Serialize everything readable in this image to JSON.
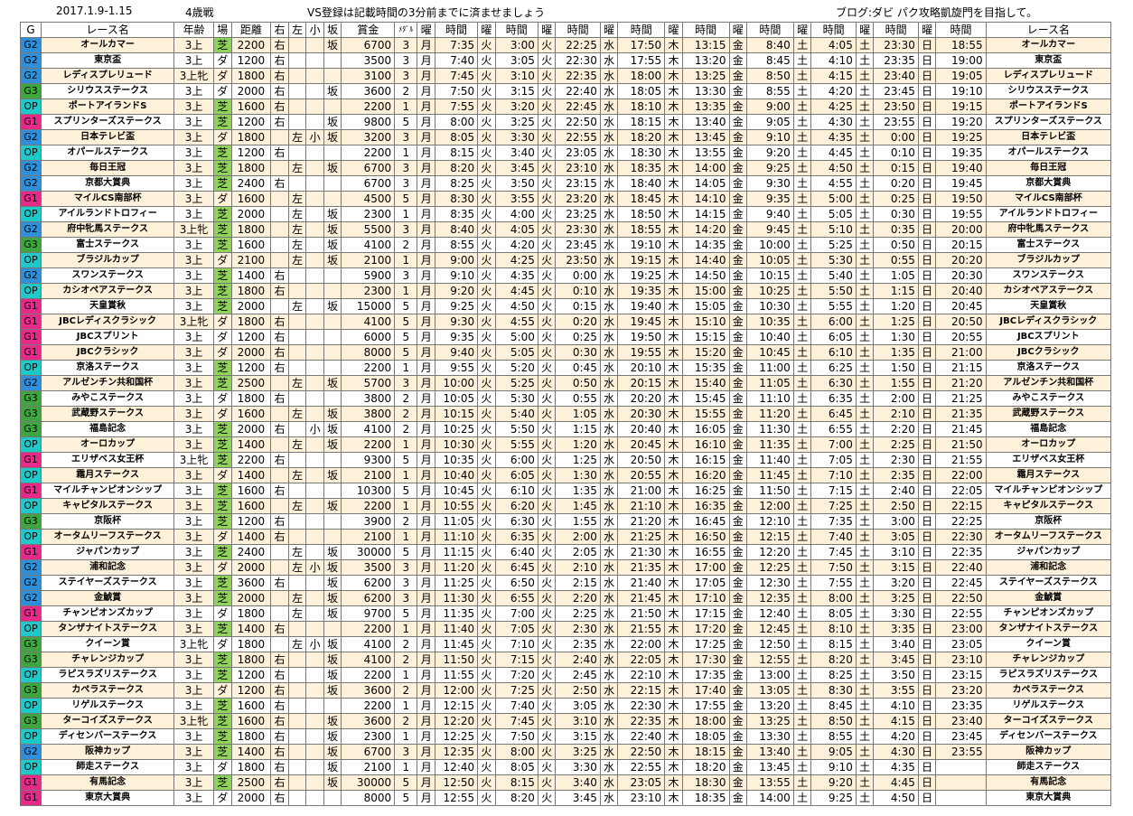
{
  "header": {
    "date_range": "2017.1.9-1.15",
    "age_label": "4歳戦",
    "notice": "VS登録は記載時間の3分前までに済ませましょう",
    "blog": "ブログ:ダビ パク攻略凱旋門を目指して。"
  },
  "columns": [
    "G",
    "レース名",
    "年齢",
    "場",
    "距離",
    "右",
    "左",
    "小",
    "坂",
    "賞金",
    "ﾒﾀﾞﾙ",
    "曜",
    "時間",
    "曜",
    "時間",
    "曜",
    "時間",
    "曜",
    "時間",
    "曜",
    "時間",
    "曜",
    "時間",
    "曜",
    "時間",
    "曜",
    "時間",
    "曜",
    "時間",
    "レース名"
  ],
  "days": [
    "月",
    "火",
    "火",
    "水",
    "木",
    "金",
    "土",
    "土",
    "日",
    "日"
  ],
  "races": [
    [
      "G2",
      "オールカマー",
      "3上",
      "芝",
      "2200",
      "右",
      "",
      "",
      "坂",
      "6700",
      "3",
      "7:35",
      "3:00",
      "22:25",
      "17:50",
      "13:15",
      "8:40",
      "4:05",
      "23:30",
      "18:55"
    ],
    [
      "G2",
      "東京盃",
      "3上",
      "ダ",
      "1200",
      "右",
      "",
      "",
      "",
      "3500",
      "3",
      "7:40",
      "3:05",
      "22:30",
      "17:55",
      "13:20",
      "8:45",
      "4:10",
      "23:35",
      "19:00"
    ],
    [
      "G2",
      "レディスプレリュード",
      "3上牝",
      "ダ",
      "1800",
      "右",
      "",
      "",
      "",
      "3100",
      "3",
      "7:45",
      "3:10",
      "22:35",
      "18:00",
      "13:25",
      "8:50",
      "4:15",
      "23:40",
      "19:05"
    ],
    [
      "G3",
      "シリウスステークス",
      "3上",
      "ダ",
      "2000",
      "右",
      "",
      "",
      "坂",
      "3600",
      "2",
      "7:50",
      "3:15",
      "22:40",
      "18:05",
      "13:30",
      "8:55",
      "4:20",
      "23:45",
      "19:10"
    ],
    [
      "OP",
      "ポートアイランドS",
      "3上",
      "芝",
      "1600",
      "右",
      "",
      "",
      "",
      "2200",
      "1",
      "7:55",
      "3:20",
      "22:45",
      "18:10",
      "13:35",
      "9:00",
      "4:25",
      "23:50",
      "19:15"
    ],
    [
      "G1",
      "スプリンターズステークス",
      "3上",
      "芝",
      "1200",
      "右",
      "",
      "",
      "坂",
      "9800",
      "5",
      "8:00",
      "3:25",
      "22:50",
      "18:15",
      "13:40",
      "9:05",
      "4:30",
      "23:55",
      "19:20"
    ],
    [
      "G2",
      "日本テレビ盃",
      "3上",
      "ダ",
      "1800",
      "",
      "左",
      "小",
      "坂",
      "3200",
      "3",
      "8:05",
      "3:30",
      "22:55",
      "18:20",
      "13:45",
      "9:10",
      "4:35",
      "0:00",
      "19:25"
    ],
    [
      "OP",
      "オパールステークス",
      "3上",
      "芝",
      "1200",
      "右",
      "",
      "",
      "",
      "2200",
      "1",
      "8:15",
      "3:40",
      "23:05",
      "18:30",
      "13:55",
      "9:20",
      "4:45",
      "0:10",
      "19:35"
    ],
    [
      "G2",
      "毎日王冠",
      "3上",
      "芝",
      "1800",
      "",
      "左",
      "",
      "坂",
      "6700",
      "3",
      "8:20",
      "3:45",
      "23:10",
      "18:35",
      "14:00",
      "9:25",
      "4:50",
      "0:15",
      "19:40"
    ],
    [
      "G2",
      "京都大賞典",
      "3上",
      "芝",
      "2400",
      "右",
      "",
      "",
      "",
      "6700",
      "3",
      "8:25",
      "3:50",
      "23:15",
      "18:40",
      "14:05",
      "9:30",
      "4:55",
      "0:20",
      "19:45"
    ],
    [
      "G1",
      "マイルCS南部杯",
      "3上",
      "ダ",
      "1600",
      "",
      "左",
      "",
      "",
      "4500",
      "5",
      "8:30",
      "3:55",
      "23:20",
      "18:45",
      "14:10",
      "9:35",
      "5:00",
      "0:25",
      "19:50"
    ],
    [
      "OP",
      "アイルランドトロフィー",
      "3上",
      "芝",
      "2000",
      "",
      "左",
      "",
      "坂",
      "2300",
      "1",
      "8:35",
      "4:00",
      "23:25",
      "18:50",
      "14:15",
      "9:40",
      "5:05",
      "0:30",
      "19:55"
    ],
    [
      "G2",
      "府中牝馬ステークス",
      "3上牝",
      "芝",
      "1800",
      "",
      "左",
      "",
      "坂",
      "5500",
      "3",
      "8:40",
      "4:05",
      "23:30",
      "18:55",
      "14:20",
      "9:45",
      "5:10",
      "0:35",
      "20:00"
    ],
    [
      "G3",
      "富士ステークス",
      "3上",
      "芝",
      "1600",
      "",
      "左",
      "",
      "坂",
      "4100",
      "2",
      "8:55",
      "4:20",
      "23:45",
      "19:10",
      "14:35",
      "10:00",
      "5:25",
      "0:50",
      "20:15"
    ],
    [
      "OP",
      "ブラジルカップ",
      "3上",
      "ダ",
      "2100",
      "",
      "左",
      "",
      "坂",
      "2100",
      "1",
      "9:00",
      "4:25",
      "23:50",
      "19:15",
      "14:40",
      "10:05",
      "5:30",
      "0:55",
      "20:20"
    ],
    [
      "G2",
      "スワンステークス",
      "3上",
      "芝",
      "1400",
      "右",
      "",
      "",
      "",
      "5900",
      "3",
      "9:10",
      "4:35",
      "0:00",
      "19:25",
      "14:50",
      "10:15",
      "5:40",
      "1:05",
      "20:30"
    ],
    [
      "OP",
      "カシオペアステークス",
      "3上",
      "芝",
      "1800",
      "右",
      "",
      "",
      "",
      "2300",
      "1",
      "9:20",
      "4:45",
      "0:10",
      "19:35",
      "15:00",
      "10:25",
      "5:50",
      "1:15",
      "20:40"
    ],
    [
      "G1",
      "天皇賞秋",
      "3上",
      "芝",
      "2000",
      "",
      "左",
      "",
      "坂",
      "15000",
      "5",
      "9:25",
      "4:50",
      "0:15",
      "19:40",
      "15:05",
      "10:30",
      "5:55",
      "1:20",
      "20:45"
    ],
    [
      "G1",
      "JBCレディスクラシック",
      "3上牝",
      "ダ",
      "1800",
      "右",
      "",
      "",
      "",
      "4100",
      "5",
      "9:30",
      "4:55",
      "0:20",
      "19:45",
      "15:10",
      "10:35",
      "6:00",
      "1:25",
      "20:50"
    ],
    [
      "G1",
      "JBCスプリント",
      "3上",
      "ダ",
      "1200",
      "右",
      "",
      "",
      "",
      "6000",
      "5",
      "9:35",
      "5:00",
      "0:25",
      "19:50",
      "15:15",
      "10:40",
      "6:05",
      "1:30",
      "20:55"
    ],
    [
      "G1",
      "JBCクラシック",
      "3上",
      "ダ",
      "2000",
      "右",
      "",
      "",
      "",
      "8000",
      "5",
      "9:40",
      "5:05",
      "0:30",
      "19:55",
      "15:20",
      "10:45",
      "6:10",
      "1:35",
      "21:00"
    ],
    [
      "OP",
      "京洛ステークス",
      "3上",
      "芝",
      "1200",
      "右",
      "",
      "",
      "",
      "2200",
      "1",
      "9:55",
      "5:20",
      "0:45",
      "20:10",
      "15:35",
      "11:00",
      "6:25",
      "1:50",
      "21:15"
    ],
    [
      "G2",
      "アルゼンチン共和国杯",
      "3上",
      "芝",
      "2500",
      "",
      "左",
      "",
      "坂",
      "5700",
      "3",
      "10:00",
      "5:25",
      "0:50",
      "20:15",
      "15:40",
      "11:05",
      "6:30",
      "1:55",
      "21:20"
    ],
    [
      "G3",
      "みやこステークス",
      "3上",
      "ダ",
      "1800",
      "右",
      "",
      "",
      "",
      "3800",
      "2",
      "10:05",
      "5:30",
      "0:55",
      "20:20",
      "15:45",
      "11:10",
      "6:35",
      "2:00",
      "21:25"
    ],
    [
      "G3",
      "武蔵野ステークス",
      "3上",
      "ダ",
      "1600",
      "",
      "左",
      "",
      "坂",
      "3800",
      "2",
      "10:15",
      "5:40",
      "1:05",
      "20:30",
      "15:55",
      "11:20",
      "6:45",
      "2:10",
      "21:35"
    ],
    [
      "G3",
      "福島記念",
      "3上",
      "芝",
      "2000",
      "右",
      "",
      "小",
      "坂",
      "4100",
      "2",
      "10:25",
      "5:50",
      "1:15",
      "20:40",
      "16:05",
      "11:30",
      "6:55",
      "2:20",
      "21:45"
    ],
    [
      "OP",
      "オーロカップ",
      "3上",
      "芝",
      "1400",
      "",
      "左",
      "",
      "坂",
      "2200",
      "1",
      "10:30",
      "5:55",
      "1:20",
      "20:45",
      "16:10",
      "11:35",
      "7:00",
      "2:25",
      "21:50"
    ],
    [
      "G1",
      "エリザベス女王杯",
      "3上牝",
      "芝",
      "2200",
      "右",
      "",
      "",
      "",
      "9300",
      "5",
      "10:35",
      "6:00",
      "1:25",
      "20:50",
      "16:15",
      "11:40",
      "7:05",
      "2:30",
      "21:55"
    ],
    [
      "OP",
      "霜月ステークス",
      "3上",
      "ダ",
      "1400",
      "",
      "左",
      "",
      "坂",
      "2100",
      "1",
      "10:40",
      "6:05",
      "1:30",
      "20:55",
      "16:20",
      "11:45",
      "7:10",
      "2:35",
      "22:00"
    ],
    [
      "G1",
      "マイルチャンピオンシップ",
      "3上",
      "芝",
      "1600",
      "右",
      "",
      "",
      "",
      "10300",
      "5",
      "10:45",
      "6:10",
      "1:35",
      "21:00",
      "16:25",
      "11:50",
      "7:15",
      "2:40",
      "22:05"
    ],
    [
      "OP",
      "キャピタルステークス",
      "3上",
      "芝",
      "1600",
      "",
      "左",
      "",
      "坂",
      "2200",
      "1",
      "10:55",
      "6:20",
      "1:45",
      "21:10",
      "16:35",
      "12:00",
      "7:25",
      "2:50",
      "22:15"
    ],
    [
      "G3",
      "京阪杯",
      "3上",
      "芝",
      "1200",
      "右",
      "",
      "",
      "",
      "3900",
      "2",
      "11:05",
      "6:30",
      "1:55",
      "21:20",
      "16:45",
      "12:10",
      "7:35",
      "3:00",
      "22:25"
    ],
    [
      "OP",
      "オータムリーフステークス",
      "3上",
      "ダ",
      "1400",
      "右",
      "",
      "",
      "",
      "2100",
      "1",
      "11:10",
      "6:35",
      "2:00",
      "21:25",
      "16:50",
      "12:15",
      "7:40",
      "3:05",
      "22:30"
    ],
    [
      "G1",
      "ジャパンカップ",
      "3上",
      "芝",
      "2400",
      "",
      "左",
      "",
      "坂",
      "30000",
      "5",
      "11:15",
      "6:40",
      "2:05",
      "21:30",
      "16:55",
      "12:20",
      "7:45",
      "3:10",
      "22:35"
    ],
    [
      "G2",
      "浦和記念",
      "3上",
      "ダ",
      "2000",
      "",
      "左",
      "小",
      "坂",
      "3500",
      "3",
      "11:20",
      "6:45",
      "2:10",
      "21:35",
      "17:00",
      "12:25",
      "7:50",
      "3:15",
      "22:40"
    ],
    [
      "G2",
      "ステイヤーズステークス",
      "3上",
      "芝",
      "3600",
      "右",
      "",
      "",
      "坂",
      "6200",
      "3",
      "11:25",
      "6:50",
      "2:15",
      "21:40",
      "17:05",
      "12:30",
      "7:55",
      "3:20",
      "22:45"
    ],
    [
      "G2",
      "金鯱賞",
      "3上",
      "芝",
      "2000",
      "",
      "左",
      "",
      "坂",
      "6200",
      "3",
      "11:30",
      "6:55",
      "2:20",
      "21:45",
      "17:10",
      "12:35",
      "8:00",
      "3:25",
      "22:50"
    ],
    [
      "G1",
      "チャンピオンズカップ",
      "3上",
      "ダ",
      "1800",
      "",
      "左",
      "",
      "坂",
      "9700",
      "5",
      "11:35",
      "7:00",
      "2:25",
      "21:50",
      "17:15",
      "12:40",
      "8:05",
      "3:30",
      "22:55"
    ],
    [
      "OP",
      "タンザナイトステークス",
      "3上",
      "芝",
      "1400",
      "右",
      "",
      "",
      "",
      "2200",
      "1",
      "11:40",
      "7:05",
      "2:30",
      "21:55",
      "17:20",
      "12:45",
      "8:10",
      "3:35",
      "23:00"
    ],
    [
      "G3",
      "クイーン賞",
      "3上牝",
      "ダ",
      "1800",
      "",
      "左",
      "小",
      "坂",
      "4100",
      "2",
      "11:45",
      "7:10",
      "2:35",
      "22:00",
      "17:25",
      "12:50",
      "8:15",
      "3:40",
      "23:05"
    ],
    [
      "G3",
      "チャレンジカップ",
      "3上",
      "芝",
      "1800",
      "右",
      "",
      "",
      "坂",
      "4100",
      "2",
      "11:50",
      "7:15",
      "2:40",
      "22:05",
      "17:30",
      "12:55",
      "8:20",
      "3:45",
      "23:10"
    ],
    [
      "OP",
      "ラピスラズリステークス",
      "3上",
      "芝",
      "1200",
      "右",
      "",
      "",
      "坂",
      "2200",
      "1",
      "11:55",
      "7:20",
      "2:45",
      "22:10",
      "17:35",
      "13:00",
      "8:25",
      "3:50",
      "23:15"
    ],
    [
      "G3",
      "カペラステークス",
      "3上",
      "ダ",
      "1200",
      "右",
      "",
      "",
      "坂",
      "3600",
      "2",
      "12:00",
      "7:25",
      "2:50",
      "22:15",
      "17:40",
      "13:05",
      "8:30",
      "3:55",
      "23:20"
    ],
    [
      "OP",
      "リゲルステークス",
      "3上",
      "芝",
      "1600",
      "右",
      "",
      "",
      "",
      "2200",
      "1",
      "12:15",
      "7:40",
      "3:05",
      "22:30",
      "17:55",
      "13:20",
      "8:45",
      "4:10",
      "23:35"
    ],
    [
      "G3",
      "ターコイズステークス",
      "3上牝",
      "芝",
      "1600",
      "右",
      "",
      "",
      "坂",
      "3600",
      "2",
      "12:20",
      "7:45",
      "3:10",
      "22:35",
      "18:00",
      "13:25",
      "8:50",
      "4:15",
      "23:40"
    ],
    [
      "OP",
      "ディセンバーステークス",
      "3上",
      "芝",
      "1800",
      "右",
      "",
      "",
      "坂",
      "2300",
      "1",
      "12:25",
      "7:50",
      "3:15",
      "22:40",
      "18:05",
      "13:30",
      "8:55",
      "4:20",
      "23:45"
    ],
    [
      "G2",
      "阪神カップ",
      "3上",
      "芝",
      "1400",
      "右",
      "",
      "",
      "坂",
      "6700",
      "3",
      "12:35",
      "8:00",
      "3:25",
      "22:50",
      "18:15",
      "13:40",
      "9:05",
      "4:30",
      "23:55"
    ],
    [
      "OP",
      "師走ステークス",
      "3上",
      "ダ",
      "1800",
      "右",
      "",
      "",
      "坂",
      "2100",
      "1",
      "12:40",
      "8:05",
      "3:30",
      "22:55",
      "18:20",
      "13:45",
      "9:10",
      "4:35",
      ""
    ],
    [
      "G1",
      "有馬記念",
      "3上",
      "芝",
      "2500",
      "右",
      "",
      "",
      "坂",
      "30000",
      "5",
      "12:50",
      "8:15",
      "3:40",
      "23:05",
      "18:30",
      "13:55",
      "9:20",
      "4:45",
      ""
    ],
    [
      "G1",
      "東京大賞典",
      "3上",
      "ダ",
      "2000",
      "右",
      "",
      "",
      "",
      "8000",
      "5",
      "12:55",
      "8:20",
      "3:45",
      "23:10",
      "18:35",
      "14:00",
      "9:25",
      "4:50",
      ""
    ]
  ]
}
